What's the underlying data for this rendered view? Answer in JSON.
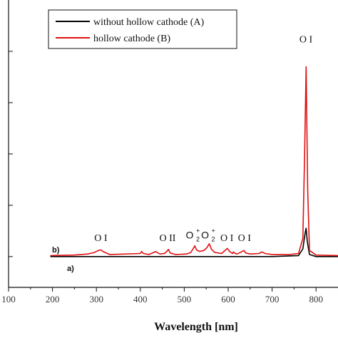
{
  "chart_data": {
    "type": "line",
    "title": "",
    "xlabel": "Wavelength [nm]",
    "ylabel": "",
    "xlim": [
      100,
      850
    ],
    "ylim": [
      -0.6,
      5.0
    ],
    "xticks": [
      100,
      200,
      300,
      400,
      500,
      600,
      700,
      800
    ],
    "legend": {
      "placement": "top-left",
      "entries": [
        {
          "label": "without hollow cathode (A)",
          "color": "#000000"
        },
        {
          "label": "hollow cathode (B)",
          "color": "#e01010"
        }
      ]
    },
    "series": [
      {
        "name": "without hollow cathode (A)",
        "tag": "a)",
        "color": "#000000",
        "x": [
          195,
          300,
          400,
          500,
          600,
          700,
          760,
          770,
          775,
          777.5,
          780,
          785,
          800,
          850
        ],
        "y": [
          0.0,
          0.0,
          0.0,
          0.0,
          0.0,
          0.0,
          0.02,
          0.15,
          0.45,
          0.55,
          0.3,
          0.04,
          0.0,
          0.0
        ]
      },
      {
        "name": "hollow cathode (B)",
        "tag": "b)",
        "color": "#e01010",
        "x": [
          195,
          250,
          280,
          295,
          305,
          310,
          315,
          330,
          400,
          403,
          407,
          420,
          430,
          435,
          440,
          445,
          455,
          460,
          464,
          468,
          480,
          505,
          515,
          520,
          524,
          528,
          535,
          545,
          552,
          557,
          562,
          570,
          585,
          593,
          598,
          603,
          610,
          612,
          616,
          620,
          625,
          632,
          636,
          640,
          650,
          670,
          677,
          684,
          700,
          740,
          760,
          770,
          774,
          777.5,
          781,
          785,
          800,
          850
        ],
        "y": [
          0.02,
          0.03,
          0.05,
          0.08,
          0.12,
          0.13,
          0.1,
          0.04,
          0.06,
          0.1,
          0.06,
          0.04,
          0.08,
          0.1,
          0.07,
          0.05,
          0.06,
          0.1,
          0.14,
          0.07,
          0.04,
          0.05,
          0.08,
          0.15,
          0.21,
          0.13,
          0.1,
          0.12,
          0.18,
          0.25,
          0.14,
          0.08,
          0.06,
          0.12,
          0.16,
          0.1,
          0.06,
          0.09,
          0.06,
          0.05,
          0.07,
          0.1,
          0.12,
          0.07,
          0.05,
          0.06,
          0.09,
          0.06,
          0.04,
          0.04,
          0.06,
          0.35,
          2.0,
          3.7,
          1.3,
          0.12,
          0.03,
          0.02
        ]
      }
    ],
    "annotations": [
      {
        "text": "O I",
        "x": 310,
        "y": 0.3
      },
      {
        "text": "O II",
        "x": 462,
        "y": 0.3
      },
      {
        "text": "O",
        "sub": "2",
        "sup": "+",
        "x": 522,
        "y": 0.35
      },
      {
        "text": "O",
        "sub": "2",
        "sup": "+",
        "x": 557,
        "y": 0.35
      },
      {
        "text": "O I",
        "x": 597,
        "y": 0.3
      },
      {
        "text": "O I",
        "x": 637,
        "y": 0.3
      },
      {
        "text": "O I",
        "x": 777,
        "y": 4.17
      }
    ]
  }
}
